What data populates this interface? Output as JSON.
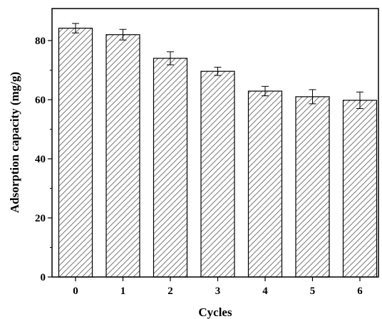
{
  "chart_data": {
    "type": "bar",
    "xlabel": "Cycles",
    "ylabel": "Adsorption capacity (mg/g)",
    "categories": [
      "0",
      "1",
      "2",
      "3",
      "4",
      "5",
      "6"
    ],
    "values": [
      84.2,
      82.0,
      74.0,
      69.6,
      62.9,
      61.0,
      59.8
    ],
    "errors": [
      1.6,
      1.8,
      2.2,
      1.4,
      1.6,
      2.4,
      2.8
    ],
    "ylim": [
      0,
      90
    ],
    "yticks": [
      "0",
      "20",
      "40",
      "60",
      "80"
    ],
    "grid": false,
    "legend": "none",
    "bar_fill": "hatched",
    "colors": {
      "bar_edge": "#000000",
      "hatch": "#7a7a7a",
      "background": "#ffffff"
    }
  }
}
